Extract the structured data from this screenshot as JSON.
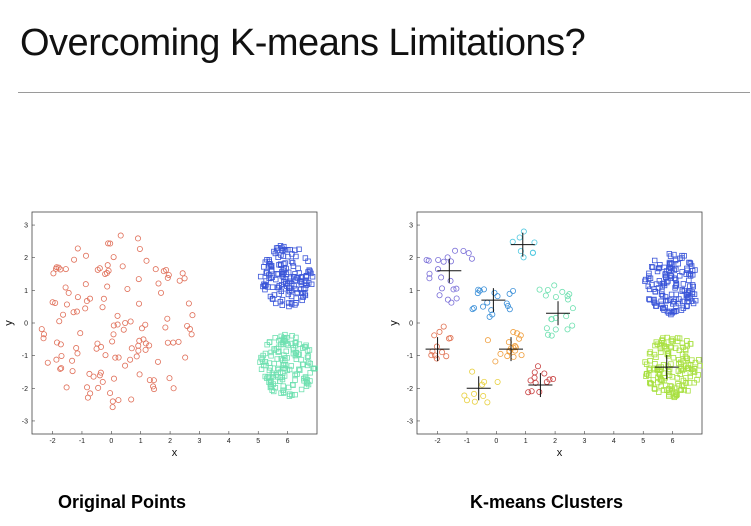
{
  "slide": {
    "title": "Overcoming K-means Limitations?",
    "left_caption": "Original Points",
    "right_caption": "K-means Clusters"
  },
  "chart_data": [
    {
      "type": "scatter",
      "title": "Original Points",
      "xlabel": "x",
      "ylabel": "y",
      "xlim": [
        -2.7,
        7
      ],
      "ylim": [
        -3.4,
        3.4
      ],
      "xticks": [
        -2,
        -1,
        0,
        1,
        2,
        3,
        4,
        5,
        6
      ],
      "yticks": [
        -3,
        -2,
        -1,
        0,
        1,
        2,
        3
      ],
      "series": [
        {
          "marker": "circle",
          "color": "#e0705a",
          "region": {
            "cx": 0.3,
            "cy": 0,
            "rx": 2.8,
            "ry": 2.8
          },
          "count": 130
        },
        {
          "marker": "square",
          "color": "#3a55d8",
          "region": {
            "cx": 6,
            "cy": 1.45,
            "rx": 0.95,
            "ry": 0.95
          },
          "count": 150
        },
        {
          "marker": "square",
          "color": "#6ee0b0",
          "region": {
            "cx": 6,
            "cy": -1.3,
            "rx": 0.95,
            "ry": 0.95
          },
          "count": 150
        }
      ]
    },
    {
      "type": "scatter",
      "title": "K-means Clusters",
      "xlabel": "x",
      "ylabel": "y",
      "xlim": [
        -2.7,
        7
      ],
      "ylim": [
        -3.4,
        3.4
      ],
      "xticks": [
        -2,
        -1,
        0,
        1,
        2,
        3,
        4,
        5,
        6
      ],
      "yticks": [
        -3,
        -2,
        -1,
        0,
        1,
        2,
        3
      ],
      "centroids": [
        {
          "x": -1.6,
          "y": 1.6
        },
        {
          "x": 0.9,
          "y": 2.4
        },
        {
          "x": -0.1,
          "y": 0.7
        },
        {
          "x": 2.1,
          "y": 0.3
        },
        {
          "x": -2.0,
          "y": -0.8
        },
        {
          "x": 0.5,
          "y": -0.8
        },
        {
          "x": -0.6,
          "y": -2.0
        },
        {
          "x": 1.5,
          "y": -1.9
        },
        {
          "x": 5.8,
          "y": -1.35
        }
      ],
      "series": [
        {
          "marker": "circle",
          "color": "#7a6fd8",
          "region": {
            "cx": -1.5,
            "cy": 1.5,
            "rx": 1.0,
            "ry": 0.9
          },
          "count": 22
        },
        {
          "marker": "circle",
          "color": "#4fc8e0",
          "region": {
            "cx": 0.9,
            "cy": 2.4,
            "rx": 0.5,
            "ry": 0.45
          },
          "count": 8
        },
        {
          "marker": "circle",
          "color": "#3a8fd8",
          "region": {
            "cx": -0.1,
            "cy": 0.7,
            "rx": 0.8,
            "ry": 0.6
          },
          "count": 18
        },
        {
          "marker": "circle",
          "color": "#6ee0b0",
          "region": {
            "cx": 2.1,
            "cy": 0.5,
            "rx": 0.8,
            "ry": 1.0
          },
          "count": 20
        },
        {
          "marker": "circle",
          "color": "#e07050",
          "region": {
            "cx": -2.0,
            "cy": -0.8,
            "rx": 0.5,
            "ry": 0.9
          },
          "count": 12
        },
        {
          "marker": "circle",
          "color": "#f0a040",
          "region": {
            "cx": 0.5,
            "cy": -0.8,
            "rx": 0.9,
            "ry": 0.6
          },
          "count": 18
        },
        {
          "marker": "circle",
          "color": "#e8d040",
          "region": {
            "cx": -0.6,
            "cy": -2.0,
            "rx": 0.7,
            "ry": 0.55
          },
          "count": 10
        },
        {
          "marker": "circle",
          "color": "#c84040",
          "region": {
            "cx": 1.5,
            "cy": -1.9,
            "rx": 0.5,
            "ry": 0.6
          },
          "count": 12
        },
        {
          "marker": "square",
          "color": "#3a55d8",
          "region": {
            "cx": 6,
            "cy": 1.2,
            "rx": 0.95,
            "ry": 0.95
          },
          "count": 150
        },
        {
          "marker": "square",
          "color": "#a8e040",
          "region": {
            "cx": 6,
            "cy": -1.35,
            "rx": 0.95,
            "ry": 0.95
          },
          "count": 150
        }
      ]
    }
  ]
}
